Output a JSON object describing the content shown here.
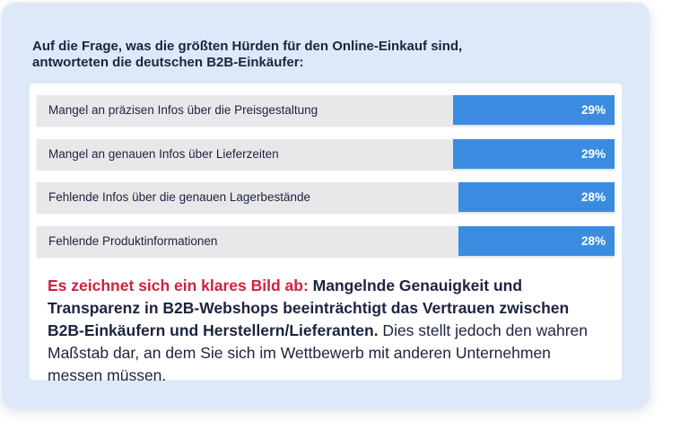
{
  "colors": {
    "card_bg": "#dde9f8",
    "bar": "#3b8ce0",
    "accent": "#d1213f",
    "text": "#1d2340"
  },
  "question": {
    "line1": "Auf die Frage, was die größten Hürden für den Online-Einkauf sind,",
    "line2": "antworteten die deutschen B2B-Einkäufer:"
  },
  "chart_data": {
    "type": "bar",
    "orientation": "horizontal",
    "title": "Auf die Frage, was die größten Hürden für den Online-Einkauf sind, antworteten die deutschen B2B-Einkäufer:",
    "categories": [
      "Mangel an präzisen Infos über die Preisgestaltung",
      "Mangel an genauen Infos über Lieferzeiten",
      "Fehlende Infos über die genauen Lagerbestände",
      "Fehlende Produktinformationen"
    ],
    "values": [
      29,
      29,
      28,
      28
    ],
    "value_labels": [
      "29%",
      "29%",
      "28%",
      "28%"
    ],
    "unit": "%",
    "xlim": [
      0,
      100
    ]
  },
  "summary": {
    "accent": "Es zeichnet sich ein klares Bild ab:",
    "strong": " Mangelnde Genauigkeit und Transparenz in B2B-Webshops beeinträchtigt das Vertrauen zwischen B2B-Einkäufern und Herstellern/Lieferanten.",
    "rest": " Dies stellt jedoch den wahren Maßstab dar, an dem Sie sich im Wettbewerb mit anderen Unternehmen messen müssen."
  }
}
